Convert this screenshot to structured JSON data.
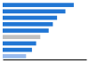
{
  "chart_data": {
    "type": "bar",
    "orientation": "horizontal",
    "categories": [
      null,
      null,
      null,
      null,
      null,
      null,
      null,
      null,
      null
    ],
    "values": [
      8.5,
      7.5,
      6.5,
      6.0,
      5.5,
      4.5,
      4.0,
      3.5,
      2.8
    ],
    "colors": [
      "#2176d4",
      "#2176d4",
      "#2176d4",
      "#2176d4",
      "#2176d4",
      "#c0c0c0",
      "#2176d4",
      "#2176d4",
      "#99bbee"
    ],
    "xlim": [
      0,
      10
    ],
    "tick_labels": false
  }
}
